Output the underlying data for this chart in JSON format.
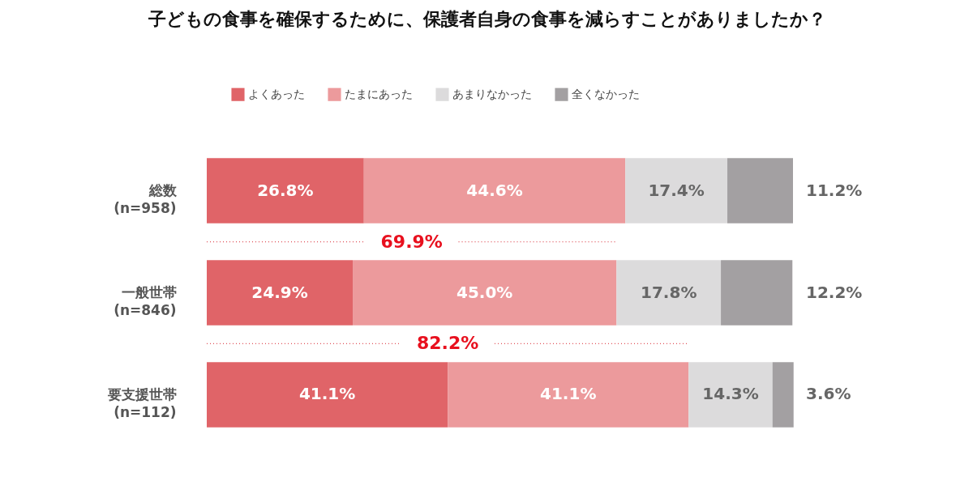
{
  "chart_data": {
    "type": "bar",
    "orientation": "horizontal",
    "stacked": true,
    "title": "子どもの食事を確保するために、保護者自身の食事を減らすことがありましたか？",
    "categories": [
      "総数\n(n=958)",
      "一般世帯\n(n=846)",
      "要支援世帯\n(n=112)"
    ],
    "series": [
      {
        "name": "よくあった",
        "color": "#e06468",
        "values": [
          26.8,
          24.9,
          41.1
        ],
        "value_labels": [
          "26.8%",
          "24.9%",
          "41.1%"
        ]
      },
      {
        "name": "たまにあった",
        "color": "#ec9a9c",
        "values": [
          44.6,
          45.0,
          41.1
        ],
        "value_labels": [
          "44.6%",
          "45.0%",
          "41.1%"
        ]
      },
      {
        "name": "あまりなかった",
        "color": "#dcdbdc",
        "values": [
          17.4,
          17.8,
          14.3
        ],
        "value_labels": [
          "17.4%",
          "17.8%",
          "14.3%"
        ]
      },
      {
        "name": "全くなかった",
        "color": "#a3a0a2",
        "values": [
          11.2,
          12.2,
          3.6
        ],
        "value_labels": [
          "11.2%",
          "12.2%",
          "3.6%"
        ]
      }
    ],
    "xlim": [
      0,
      100
    ],
    "annotations": [
      "69.9%",
      "82.2%"
    ],
    "legend": "top"
  }
}
